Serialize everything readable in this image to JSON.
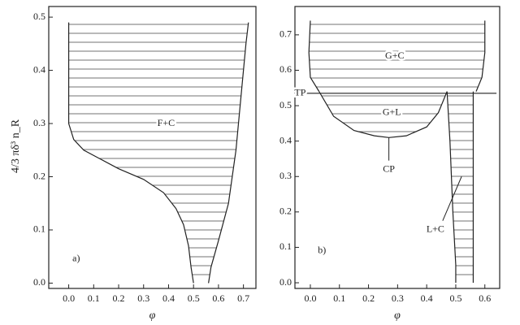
{
  "chart_data": [
    {
      "type": "line",
      "ylabel": "4/3 πδ³ n_R",
      "xlabel": "φ",
      "annotations": [
        "F+C",
        "a)"
      ],
      "xlim": [
        -0.08,
        0.75
      ],
      "ylim": [
        -0.01,
        0.52
      ],
      "xticks": [
        {
          "value": 0,
          "label": "0.0"
        },
        0.1,
        0.2,
        0.3,
        0.4,
        0.5,
        0.6,
        0.7
      ],
      "yticks": [
        {
          "value": 0,
          "label": "0.0"
        },
        0.1,
        0.2,
        0.3,
        0.4,
        0.5
      ],
      "series": [
        {
          "x": [
            0,
            0,
            0.02,
            0.06,
            0.12,
            0.2,
            0.3,
            0.38,
            0.43,
            0.46,
            0.48,
            0.49,
            0.5
          ],
          "y": [
            0.49,
            0.3,
            0.27,
            0.25,
            0.235,
            0.215,
            0.195,
            0.17,
            0.14,
            0.11,
            0.07,
            0.03,
            0.0
          ]
        },
        {
          "x": [
            0.56,
            0.57,
            0.6,
            0.64,
            0.67,
            0.69,
            0.71,
            0.72
          ],
          "y": [
            0.0,
            0.03,
            0.08,
            0.15,
            0.25,
            0.35,
            0.45,
            0.49
          ]
        }
      ]
    },
    {
      "type": "line",
      "xlabel": "φ",
      "annotations": [
        "G+C",
        "G+L",
        "TP",
        "CP",
        "L+C",
        "b)"
      ],
      "xlim": [
        -0.053,
        0.651
      ],
      "ylim": [
        -0.016,
        0.78
      ],
      "xticks": [
        {
          "value": 0,
          "label": "0.0"
        },
        0.1,
        0.2,
        0.3,
        0.4,
        0.5,
        0.6
      ],
      "yticks": [
        {
          "value": 0,
          "label": "0.0"
        },
        0.1,
        0.2,
        0.3,
        0.4,
        0.5,
        0.6,
        0.7
      ],
      "series": [
        {
          "x": [
            0.0,
            -0.005,
            0.0,
            0.03
          ],
          "y": [
            0.74,
            0.65,
            0.58,
            0.54
          ]
        },
        {
          "x": [
            0.6,
            0.6,
            0.59,
            0.57
          ],
          "y": [
            0.74,
            0.65,
            0.58,
            0.54
          ]
        },
        {
          "x": [
            0.03,
            0.08,
            0.15,
            0.22,
            0.27,
            0.33,
            0.4,
            0.44,
            0.47
          ],
          "y": [
            0.54,
            0.47,
            0.43,
            0.415,
            0.41,
            0.415,
            0.44,
            0.48,
            0.54
          ]
        },
        {
          "x": [
            0.47,
            0.48,
            0.49,
            0.5,
            0.5
          ],
          "y": [
            0.54,
            0.4,
            0.2,
            0.05,
            0.0
          ]
        },
        {
          "x": [
            0.56,
            0.56
          ],
          "y": [
            0.54,
            0.0
          ]
        },
        {
          "x": [
            -0.04,
            0.64
          ],
          "y": [
            0.535,
            0.535
          ]
        }
      ]
    }
  ]
}
